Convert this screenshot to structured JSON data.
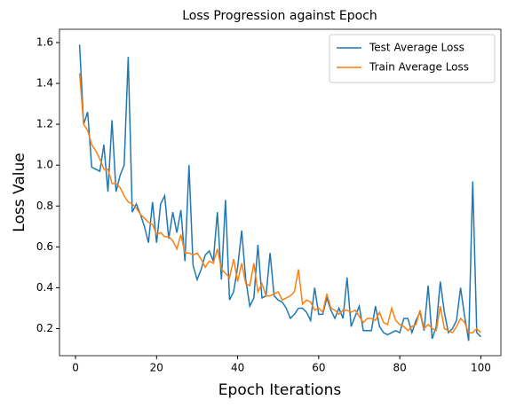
{
  "chart_data": {
    "type": "line",
    "title": "Loss Progression against Epoch",
    "xlabel": "Epoch Iterations",
    "ylabel": "Loss Value",
    "x": [
      1,
      2,
      3,
      4,
      5,
      6,
      7,
      8,
      9,
      10,
      11,
      12,
      13,
      14,
      15,
      16,
      17,
      18,
      19,
      20,
      21,
      22,
      23,
      24,
      25,
      26,
      27,
      28,
      29,
      30,
      31,
      32,
      33,
      34,
      35,
      36,
      37,
      38,
      39,
      40,
      41,
      42,
      43,
      44,
      45,
      46,
      47,
      48,
      49,
      50,
      51,
      52,
      53,
      54,
      55,
      56,
      57,
      58,
      59,
      60,
      61,
      62,
      63,
      64,
      65,
      66,
      67,
      68,
      69,
      70,
      71,
      72,
      73,
      74,
      75,
      76,
      77,
      78,
      79,
      80,
      81,
      82,
      83,
      84,
      85,
      86,
      87,
      88,
      89,
      90,
      91,
      92,
      93,
      94,
      95,
      96,
      97,
      98,
      99,
      100
    ],
    "series": [
      {
        "name": "Test Average Loss",
        "color": "#1f77b4",
        "values": [
          1.59,
          1.2,
          1.26,
          0.99,
          0.98,
          0.97,
          1.1,
          0.87,
          1.22,
          0.87,
          0.95,
          1.0,
          1.53,
          0.77,
          0.81,
          0.76,
          0.7,
          0.62,
          0.82,
          0.62,
          0.81,
          0.85,
          0.64,
          0.77,
          0.67,
          0.78,
          0.53,
          1.0,
          0.51,
          0.44,
          0.49,
          0.56,
          0.58,
          0.53,
          0.77,
          0.44,
          0.83,
          0.34,
          0.38,
          0.5,
          0.68,
          0.44,
          0.31,
          0.35,
          0.61,
          0.35,
          0.36,
          0.57,
          0.36,
          0.34,
          0.33,
          0.3,
          0.25,
          0.27,
          0.3,
          0.3,
          0.28,
          0.24,
          0.4,
          0.27,
          0.27,
          0.35,
          0.29,
          0.25,
          0.3,
          0.25,
          0.45,
          0.21,
          0.26,
          0.31,
          0.19,
          0.19,
          0.19,
          0.31,
          0.21,
          0.18,
          0.17,
          0.18,
          0.19,
          0.18,
          0.25,
          0.25,
          0.18,
          0.24,
          0.28,
          0.19,
          0.41,
          0.15,
          0.21,
          0.43,
          0.28,
          0.18,
          0.2,
          0.24,
          0.4,
          0.26,
          0.14,
          0.92,
          0.18,
          0.16
        ]
      },
      {
        "name": "Train Average Loss",
        "color": "#ff7f0e",
        "values": [
          1.45,
          1.2,
          1.17,
          1.1,
          1.07,
          1.03,
          0.98,
          0.98,
          0.91,
          0.91,
          0.89,
          0.85,
          0.82,
          0.81,
          0.79,
          0.76,
          0.74,
          0.72,
          0.71,
          0.66,
          0.67,
          0.65,
          0.65,
          0.63,
          0.59,
          0.66,
          0.57,
          0.57,
          0.56,
          0.57,
          0.54,
          0.5,
          0.53,
          0.52,
          0.59,
          0.49,
          0.47,
          0.45,
          0.54,
          0.43,
          0.52,
          0.42,
          0.41,
          0.52,
          0.38,
          0.42,
          0.36,
          0.36,
          0.37,
          0.38,
          0.34,
          0.35,
          0.36,
          0.38,
          0.49,
          0.32,
          0.34,
          0.33,
          0.29,
          0.3,
          0.28,
          0.37,
          0.3,
          0.29,
          0.27,
          0.29,
          0.29,
          0.28,
          0.29,
          0.26,
          0.23,
          0.25,
          0.25,
          0.24,
          0.28,
          0.23,
          0.22,
          0.3,
          0.24,
          0.22,
          0.21,
          0.19,
          0.21,
          0.22,
          0.29,
          0.2,
          0.22,
          0.2,
          0.19,
          0.31,
          0.2,
          0.19,
          0.18,
          0.21,
          0.25,
          0.23,
          0.18,
          0.18,
          0.2,
          0.18
        ]
      }
    ],
    "xlim": [
      -3.95,
      104.95
    ],
    "xticks": [
      0,
      20,
      40,
      60,
      80,
      100
    ],
    "ylim": [
      0.0675,
      1.665
    ],
    "yticks": [
      0.2,
      0.4,
      0.6,
      0.8,
      {
        "value": 1,
        "label": "1.0"
      },
      1.2,
      1.4,
      1.6
    ],
    "legend": "upper right",
    "grid": false
  }
}
